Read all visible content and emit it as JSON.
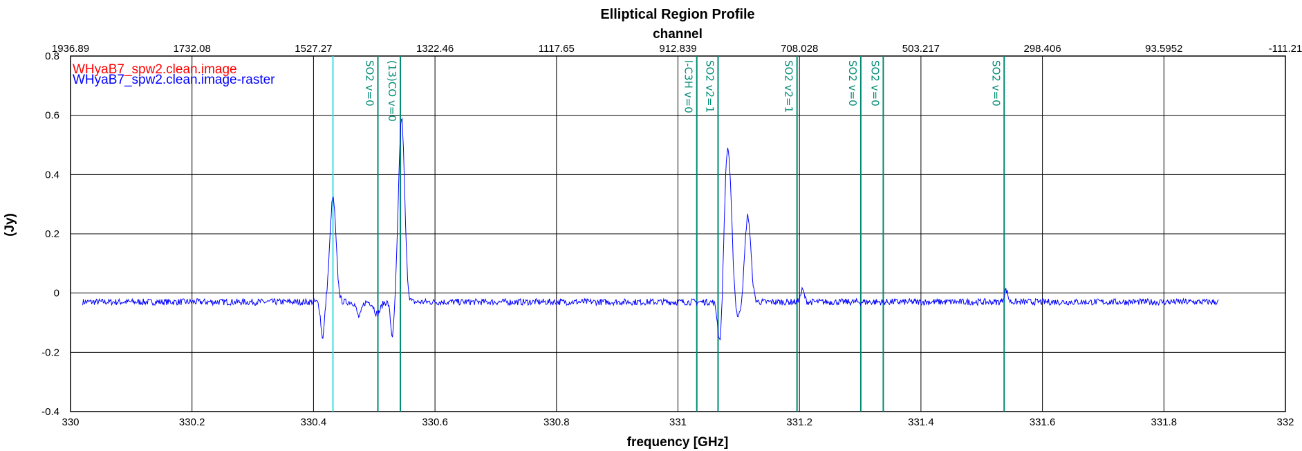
{
  "chart_data": {
    "type": "line",
    "title": "Elliptical Region Profile",
    "xlabel": "frequency [GHz]",
    "top_xlabel": "channel",
    "ylabel": "(Jy)",
    "xlim": [
      330,
      332
    ],
    "ylim": [
      -0.4,
      0.8
    ],
    "x_ticks": [
      "330",
      "330.2",
      "330.4",
      "330.6",
      "330.8",
      "331",
      "331.2",
      "331.4",
      "331.6",
      "331.8",
      "332"
    ],
    "y_ticks": [
      "-0.4",
      "-0.2",
      "0",
      "0.2",
      "0.4",
      "0.6",
      "0.8"
    ],
    "top_ticks": [
      "1936.89",
      "1732.08",
      "1527.27",
      "1322.46",
      "1117.65",
      "912.839",
      "708.028",
      "503.217",
      "298.406",
      "93.5952",
      "-111.21"
    ],
    "grid": true,
    "legend_position": "top-left",
    "legend": [
      {
        "label": "WHyaB7_spw2.clean.image",
        "color": "#ff0000"
      },
      {
        "label": "WHyaB7_spw2.clean.image-raster",
        "color": "#0000ff"
      }
    ],
    "x_range_data": [
      330.02,
      331.89
    ],
    "baseline": -0.03,
    "features": [
      {
        "x": 330.415,
        "amp": -0.12,
        "width": 0.003
      },
      {
        "x": 330.432,
        "amp": 0.35,
        "width": 0.005
      },
      {
        "x": 330.475,
        "amp": -0.05,
        "width": 0.004
      },
      {
        "x": 330.505,
        "amp": -0.04,
        "width": 0.005
      },
      {
        "x": 330.53,
        "amp": -0.12,
        "width": 0.003
      },
      {
        "x": 330.545,
        "amp": 0.62,
        "width": 0.005
      },
      {
        "x": 331.07,
        "amp": -0.18,
        "width": 0.004
      },
      {
        "x": 331.082,
        "amp": 0.52,
        "width": 0.006
      },
      {
        "x": 331.098,
        "amp": -0.06,
        "width": 0.005
      },
      {
        "x": 331.115,
        "amp": 0.29,
        "width": 0.005
      },
      {
        "x": 331.205,
        "amp": 0.04,
        "width": 0.003
      },
      {
        "x": 331.54,
        "amp": 0.04,
        "width": 0.003
      }
    ],
    "markers": [
      {
        "x": 330.432,
        "label": "",
        "color": "#40e0e0"
      },
      {
        "x": 330.506,
        "label": "SO2 v=0",
        "color": "#008b74"
      },
      {
        "x": 330.543,
        "label": "(13)CO v=0",
        "color": "#008b74"
      },
      {
        "x": 331.031,
        "label": "l-C3H v=0",
        "color": "#008b74"
      },
      {
        "x": 331.066,
        "label": "SO2 v2=1",
        "color": "#008b74"
      },
      {
        "x": 331.196,
        "label": "SO2 v2=1",
        "color": "#008b74"
      },
      {
        "x": 331.301,
        "label": "SO2 v=0",
        "color": "#008b74"
      },
      {
        "x": 331.338,
        "label": "SO2 v=0",
        "color": "#008b74"
      },
      {
        "x": 331.537,
        "label": "SO2 v=0",
        "color": "#008b74"
      }
    ],
    "colors": {
      "grid": "#000000",
      "series": "#0000ff"
    }
  }
}
